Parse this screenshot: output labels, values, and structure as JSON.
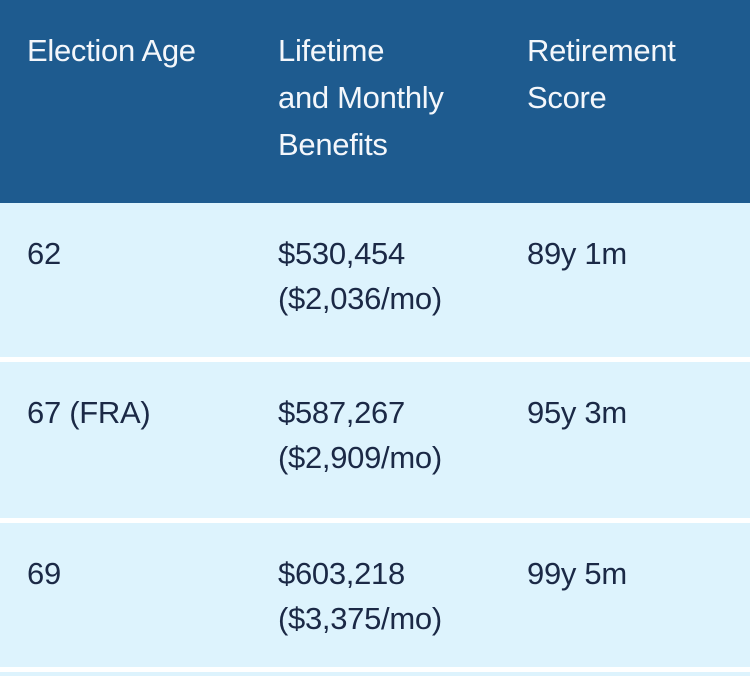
{
  "table": {
    "header": {
      "election_age": "Election Age",
      "benefits": "Lifetime\nand Monthly\nBenefits",
      "score": "Retirement\nScore"
    },
    "rows": [
      {
        "age": "62",
        "lifetime": "$530,454",
        "monthly": "($2,036/mo)",
        "score": "89y 1m"
      },
      {
        "age": "67 (FRA)",
        "lifetime": "$587,267",
        "monthly": "($2,909/mo)",
        "score": "95y 3m"
      },
      {
        "age": "69",
        "lifetime": "$603,218",
        "monthly": "($3,375/mo)",
        "score": "99y 5m"
      }
    ],
    "colors": {
      "header_bg": "#1E5B8F",
      "header_text": "#F4F7FB",
      "row_bg": "#DDF3FD",
      "body_text": "#1B2946",
      "separator": "#FFFFFF"
    }
  }
}
